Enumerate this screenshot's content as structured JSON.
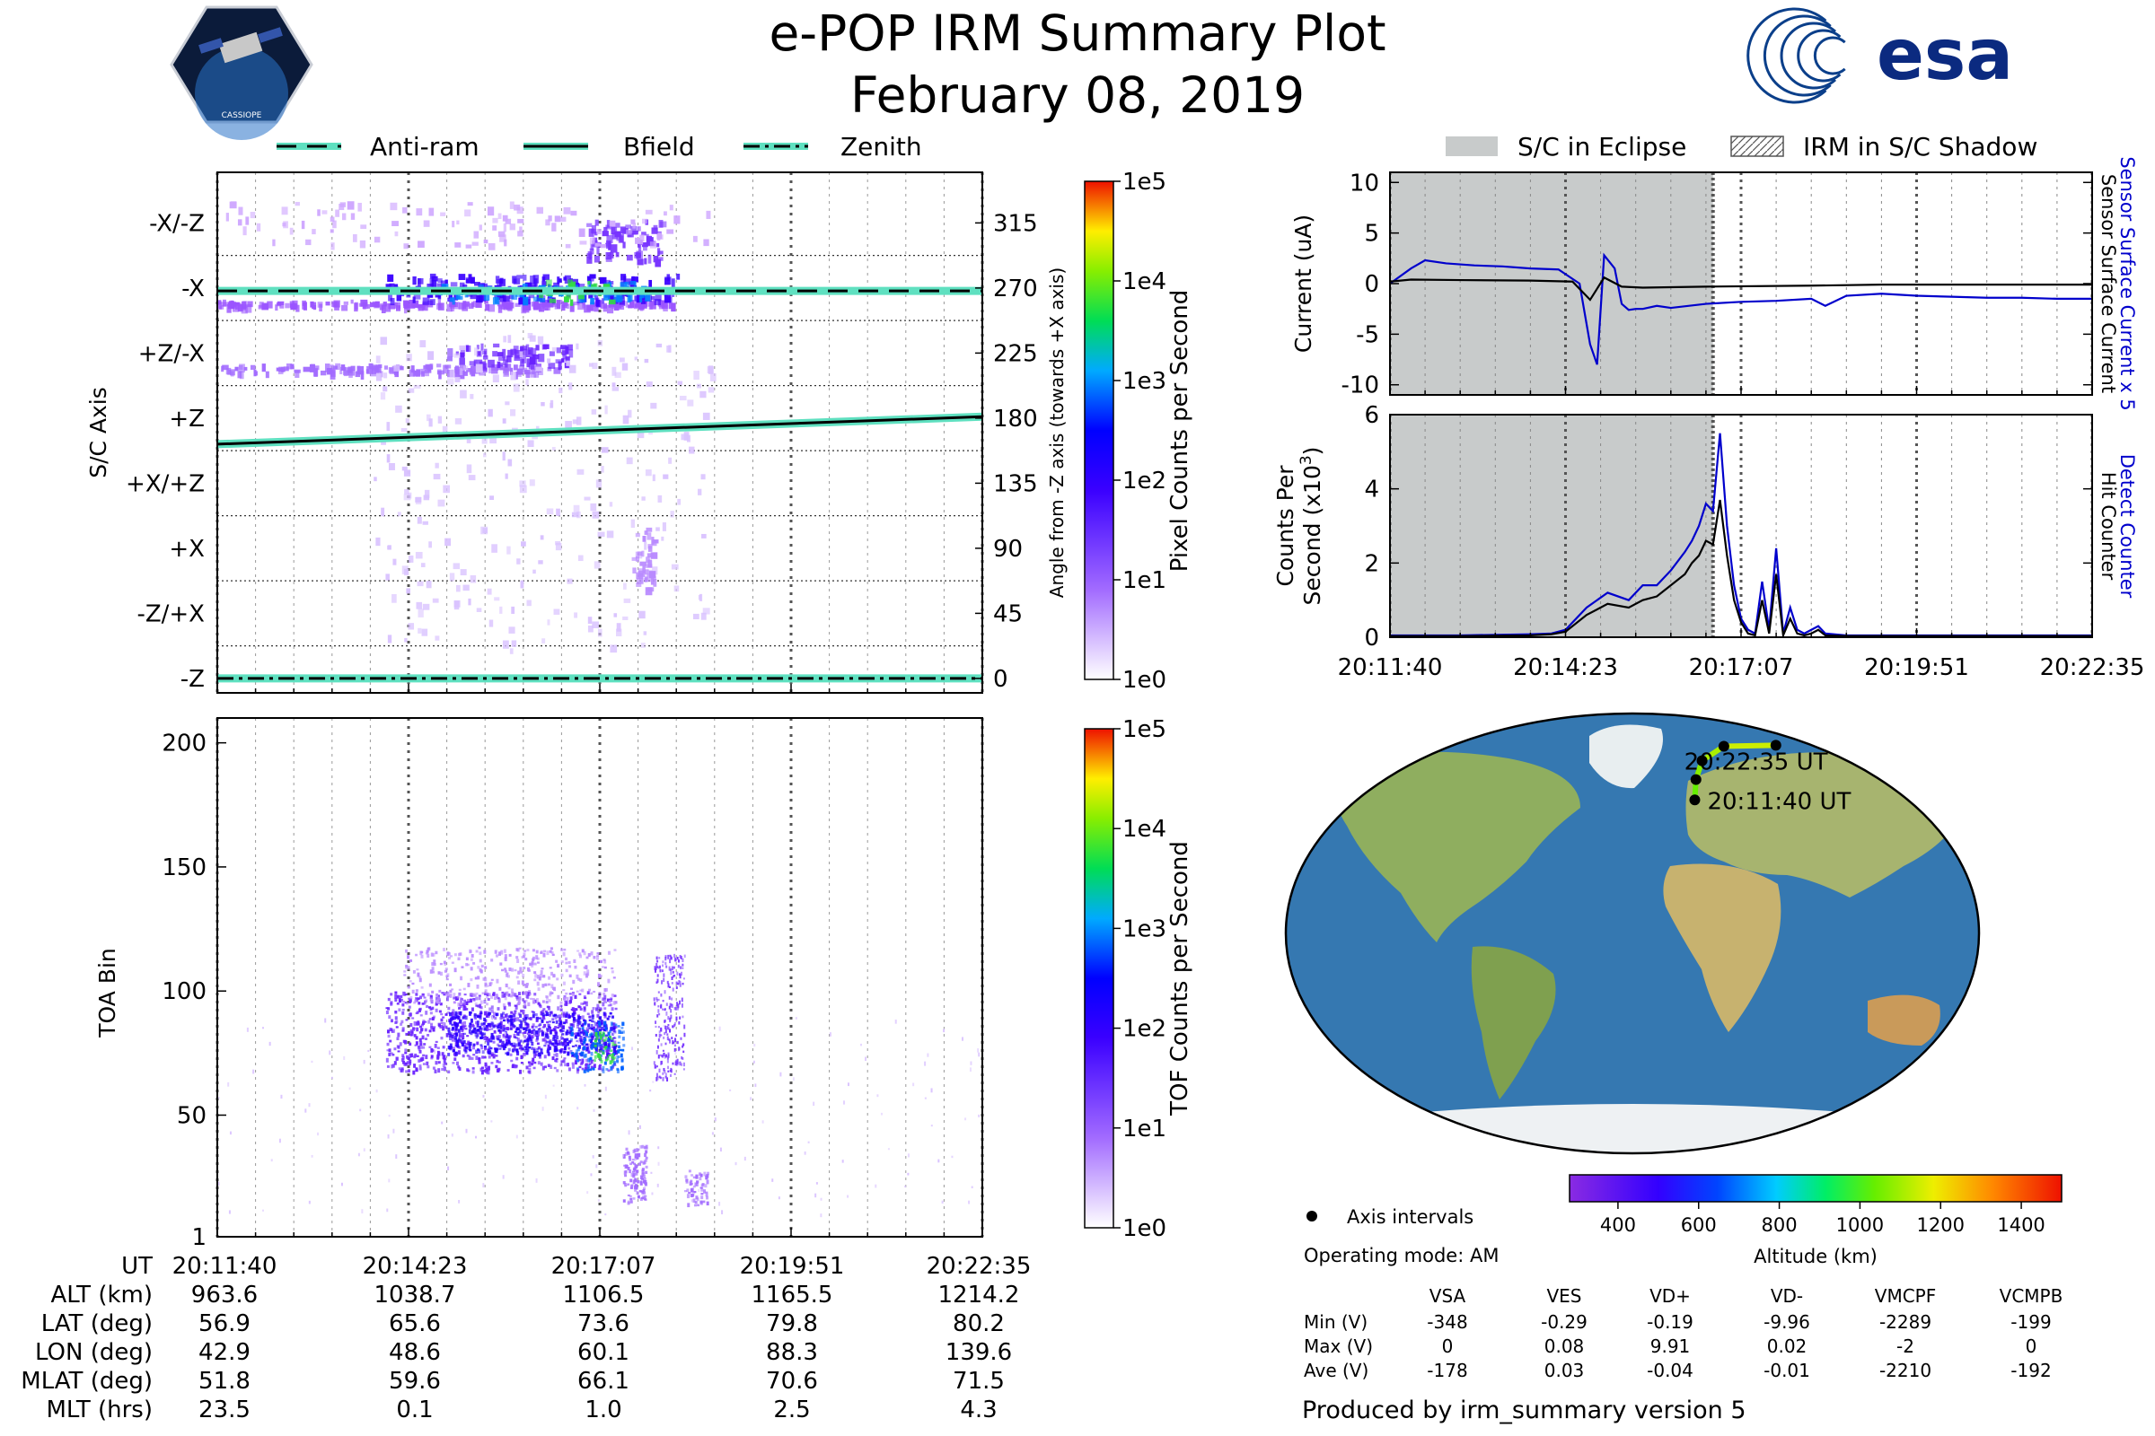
{
  "header": {
    "title": "e-POP IRM Summary Plot",
    "date": "February 08, 2019",
    "mission_logo_label": "CASSIOPE",
    "agency_logo_label": "esa"
  },
  "colors": {
    "sensor_surface_current": "#0000cc",
    "eclipse_fill": "#c8cbcb",
    "axis_line": "#5fe0c0",
    "bfield_line": "#000000"
  },
  "chart_data": [
    {
      "id": "pixel_panel",
      "type": "heatmap",
      "ylabel_left": "S/C Axis",
      "ylabel_right": "Angle from -Z axis (towards +X axis)",
      "left_ticks": [
        "-X/-Z",
        "-X",
        "+Z/-X",
        "+Z",
        "+X/+Z",
        "+X",
        "-Z/+X",
        "-Z"
      ],
      "right_ticks": [
        315,
        270,
        225,
        180,
        135,
        90,
        45,
        0
      ],
      "ylim": [
        -10,
        350
      ],
      "legend": [
        {
          "label": "Anti-ram",
          "style": "dashed"
        },
        {
          "label": "Bfield",
          "style": "solid"
        },
        {
          "label": "Zenith",
          "style": "dashdot"
        }
      ],
      "series": [
        {
          "name": "Anti-ram",
          "x": [
            0,
            100
          ],
          "y": [
            268,
            268
          ]
        },
        {
          "name": "Bfield",
          "x": [
            0,
            100
          ],
          "y": [
            162,
            181
          ]
        },
        {
          "name": "Zenith",
          "x": [
            0,
            100
          ],
          "y": [
            0,
            0
          ]
        }
      ],
      "colorbar": {
        "label": "Pixel Counts per Second",
        "ticks": [
          "1e0",
          "1e1",
          "1e2",
          "1e3",
          "1e4",
          "1e5"
        ]
      }
    },
    {
      "id": "tof_panel",
      "type": "heatmap",
      "ylabel": "TOA Bin",
      "ylim": [
        1,
        210
      ],
      "yticks": [
        1,
        50,
        100,
        150,
        200
      ],
      "colorbar": {
        "label": "TOF Counts per Second",
        "ticks": [
          "1e0",
          "1e1",
          "1e2",
          "1e3",
          "1e4",
          "1e5"
        ]
      }
    },
    {
      "id": "current_panel",
      "type": "line",
      "ylabel": "Current (uA)",
      "ylim": [
        -11,
        11
      ],
      "yticks": [
        10,
        5,
        0,
        -5,
        -10
      ],
      "right_label_1": "Sensor Surface Current x 5",
      "right_label_2": "Sensor Surface Current",
      "legend": [
        {
          "label": "S/C in Eclipse"
        },
        {
          "label": "IRM in S/C Shadow"
        }
      ],
      "series": [
        {
          "name": "Sensor Surface Current x 5",
          "x": [
            0,
            3,
            5,
            8,
            12,
            16,
            20,
            24,
            27,
            28.5,
            29.5,
            30.5,
            32,
            33,
            34,
            35,
            36,
            38,
            40,
            45,
            50,
            55,
            60,
            62,
            65,
            70,
            75,
            80,
            85,
            90,
            95,
            100
          ],
          "y": [
            0,
            1.5,
            2.3,
            2.0,
            1.8,
            1.7,
            1.5,
            1.4,
            0,
            -6,
            -8,
            2.8,
            1.5,
            -2,
            -2.6,
            -2.5,
            -2.5,
            -2.2,
            -2.4,
            -2.0,
            -1.8,
            -1.7,
            -1.5,
            -2.2,
            -1.2,
            -1.0,
            -1.2,
            -1.3,
            -1.4,
            -1.4,
            -1.5,
            -1.5
          ]
        },
        {
          "name": "Sensor Surface Current",
          "x": [
            0,
            3,
            10,
            20,
            26,
            28.5,
            30.5,
            33,
            36,
            45,
            60,
            70,
            100
          ],
          "y": [
            0.2,
            0.4,
            0.35,
            0.3,
            0.2,
            -1.6,
            0.6,
            -0.3,
            -0.4,
            -0.3,
            -0.2,
            -0.1,
            -0.1
          ]
        }
      ],
      "eclipse_x": [
        0,
        46
      ]
    },
    {
      "id": "counts_panel",
      "type": "line",
      "ylabel_line1": "Counts Per",
      "ylabel_line2": "Second (x10",
      "ylabel_sup": "3",
      "ylabel_close": ")",
      "ylim": [
        0,
        6
      ],
      "yticks": [
        0,
        2,
        4,
        6
      ],
      "right_label_1": "Detect Counter",
      "right_label_2": "Hit Counter",
      "xticks": [
        "20:11:40",
        "20:14:23",
        "20:17:07",
        "20:19:51",
        "20:22:35"
      ],
      "series": [
        {
          "name": "Detect Counter",
          "x": [
            0,
            10,
            20,
            23,
            25,
            28,
            31,
            34,
            36,
            38,
            40,
            42,
            43,
            44,
            45,
            46,
            47,
            48,
            49,
            50,
            51,
            52,
            53,
            54,
            55,
            56,
            57,
            58,
            59,
            60,
            61,
            62,
            65,
            100
          ],
          "y": [
            0.05,
            0.05,
            0.08,
            0.1,
            0.2,
            0.8,
            1.2,
            1.0,
            1.4,
            1.4,
            1.8,
            2.3,
            2.6,
            3.0,
            3.6,
            3.4,
            5.5,
            3.0,
            1.4,
            0.5,
            0.2,
            0.1,
            1.5,
            0.2,
            2.4,
            0.1,
            0.8,
            0.2,
            0.1,
            0.2,
            0.3,
            0.1,
            0.05,
            0.05
          ]
        },
        {
          "name": "Hit Counter",
          "x": [
            0,
            10,
            20,
            23,
            25,
            28,
            31,
            34,
            36,
            38,
            40,
            42,
            43,
            44,
            45,
            46,
            47,
            48,
            49,
            50,
            51,
            52,
            53,
            54,
            55,
            56,
            57,
            58,
            59,
            60,
            61,
            62,
            65,
            100
          ],
          "y": [
            0.03,
            0.03,
            0.05,
            0.08,
            0.15,
            0.6,
            0.9,
            0.8,
            1.0,
            1.1,
            1.4,
            1.7,
            2.0,
            2.2,
            2.6,
            2.5,
            3.7,
            2.2,
            1.0,
            0.4,
            0.1,
            0.05,
            1.0,
            0.1,
            1.7,
            0.05,
            0.5,
            0.1,
            0.05,
            0.1,
            0.2,
            0.05,
            0.03,
            0.03
          ]
        }
      ],
      "eclipse_x": [
        0,
        46
      ]
    }
  ],
  "time_axis": {
    "labels": [
      "20:11:40",
      "20:14:23",
      "20:17:07",
      "20:19:51",
      "20:22:35"
    ]
  },
  "ephemeris": {
    "row_labels": [
      "UT",
      "ALT (km)",
      "LAT (deg)",
      "LON (deg)",
      "MLAT (deg)",
      "MLT (hrs)"
    ],
    "columns": [
      [
        "20:11:40",
        "963.6",
        "56.9",
        "42.9",
        "51.8",
        "23.5"
      ],
      [
        "20:14:23",
        "1038.7",
        "65.6",
        "48.6",
        "59.6",
        "0.1"
      ],
      [
        "20:17:07",
        "1106.5",
        "73.6",
        "60.1",
        "66.1",
        "1.0"
      ],
      [
        "20:19:51",
        "1165.5",
        "79.8",
        "88.3",
        "70.6",
        "2.5"
      ],
      [
        "20:22:35",
        "1214.2",
        "80.2",
        "139.6",
        "71.5",
        "4.3"
      ]
    ]
  },
  "map": {
    "start_label": "20:11:40 UT",
    "end_label": "20:22:35 UT",
    "track": [
      {
        "lon": 42.9,
        "lat": 56.9
      },
      {
        "lon": 48.6,
        "lat": 65.6
      },
      {
        "lon": 60.1,
        "lat": 73.6
      },
      {
        "lon": 88.3,
        "lat": 79.8
      },
      {
        "lon": 139.6,
        "lat": 80.2
      }
    ],
    "altitude_colorbar": {
      "label": "Altitude (km)",
      "ticks": [
        "400",
        "600",
        "800",
        "1000",
        "1200",
        "1400"
      ]
    },
    "axis_intervals_label": "Axis intervals",
    "operating_mode": "Operating mode: AM"
  },
  "voltages": {
    "columns": [
      "VSA",
      "VES",
      "VD+",
      "VD-",
      "VMCPF",
      "VCMPB"
    ],
    "rows": [
      {
        "label": "Min (V)",
        "values": [
          "-348",
          "-0.29",
          "-0.19",
          "-9.96",
          "-2289",
          "-199"
        ]
      },
      {
        "label": "Max (V)",
        "values": [
          "0",
          "0.08",
          "9.91",
          "0.02",
          "-2",
          "0"
        ]
      },
      {
        "label": "Ave (V)",
        "values": [
          "-178",
          "0.03",
          "-0.04",
          "-0.01",
          "-2210",
          "-192"
        ]
      }
    ]
  },
  "footer": "Produced by irm_summary version 5"
}
